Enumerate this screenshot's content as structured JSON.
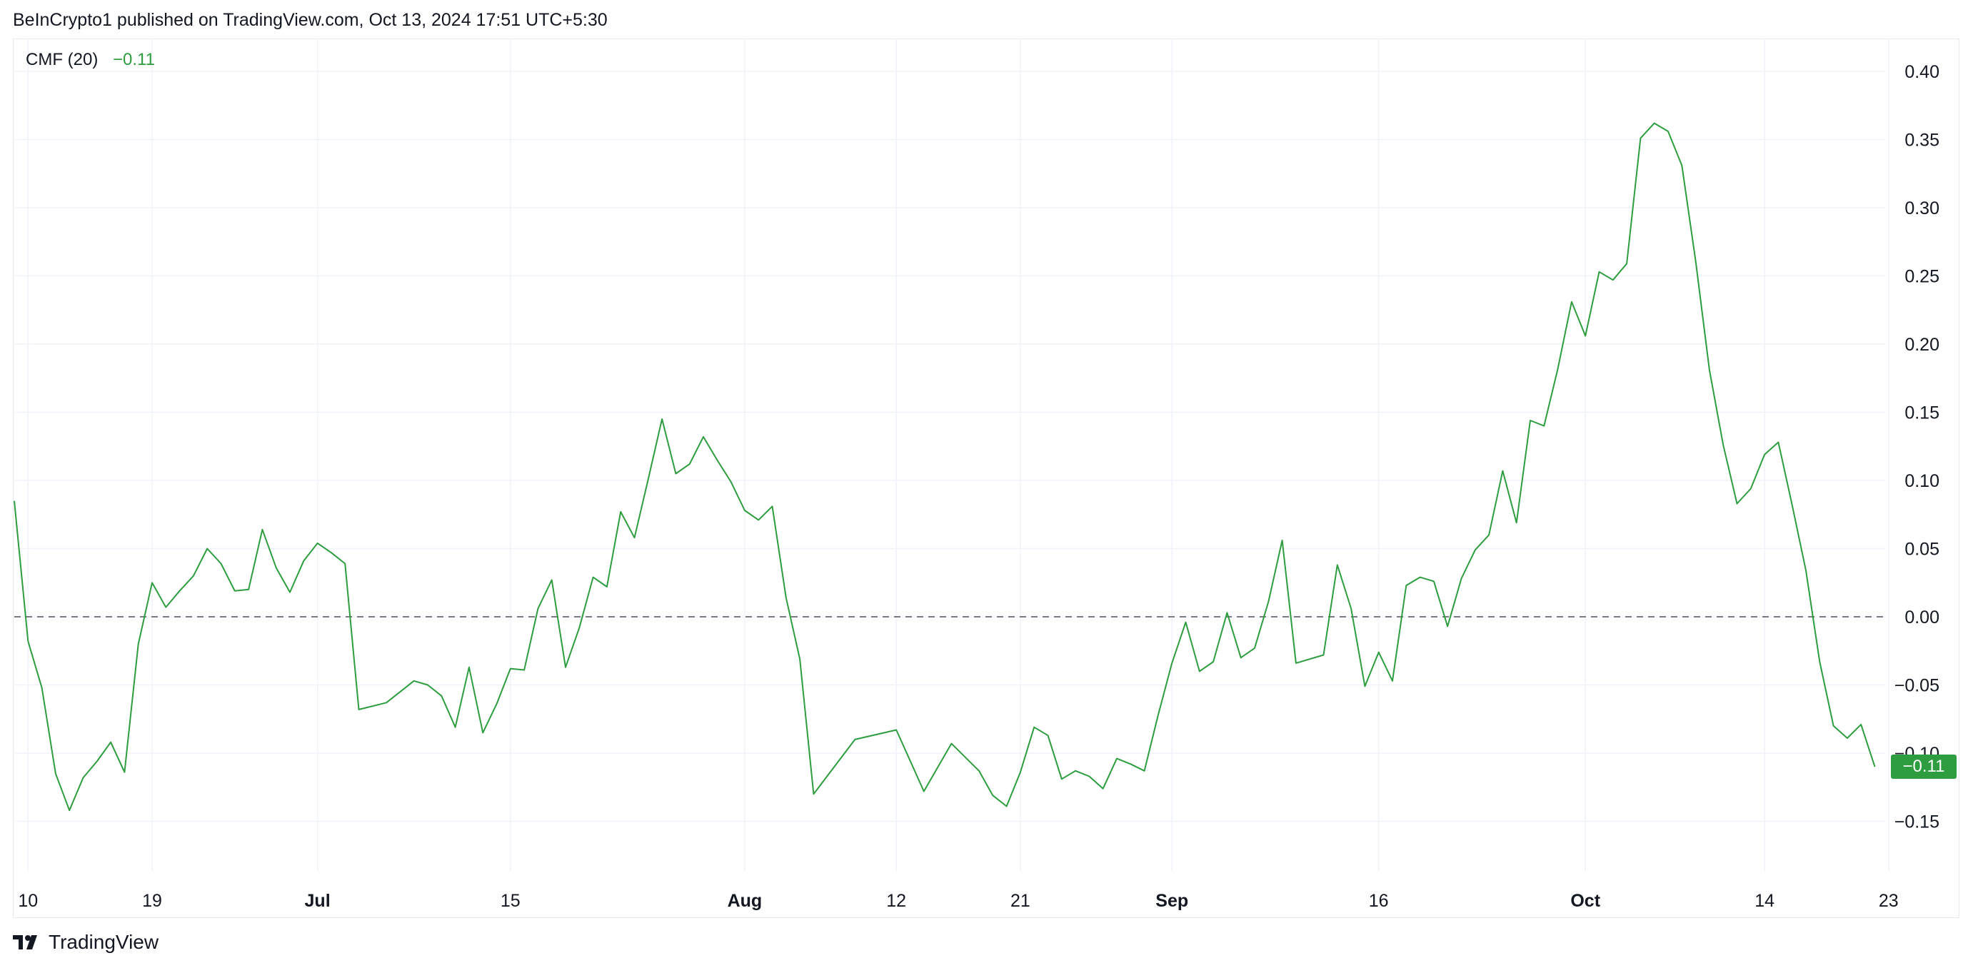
{
  "attribution": "BeInCrypto1 published on TradingView.com, Oct 13, 2024 17:51 UTC+5:30",
  "legend": {
    "name": "CMF (20)",
    "value": "−0.11"
  },
  "brand": {
    "name": "TradingView"
  },
  "last_value_label": "−0.11",
  "colors": {
    "line": "#2e9d3f",
    "grid": "#f0f3fa",
    "zero_line": "#787b86"
  },
  "chart_data": {
    "type": "line",
    "title": "CMF (20)",
    "xlabel": "",
    "ylabel": "",
    "ylim": [
      -0.19,
      0.42
    ],
    "grid": true,
    "zero_line": {
      "value": 0,
      "style": "dashed"
    },
    "y_ticks": [
      {
        "v": 0.4,
        "label": "0.40"
      },
      {
        "v": 0.35,
        "label": "0.35"
      },
      {
        "v": 0.3,
        "label": "0.30"
      },
      {
        "v": 0.25,
        "label": "0.25"
      },
      {
        "v": 0.2,
        "label": "0.20"
      },
      {
        "v": 0.15,
        "label": "0.15"
      },
      {
        "v": 0.1,
        "label": "0.10"
      },
      {
        "v": 0.05,
        "label": "0.05"
      },
      {
        "v": 0.0,
        "label": "0.00"
      },
      {
        "v": -0.05,
        "label": "−0.05"
      },
      {
        "v": -0.1,
        "label": "−0.10"
      },
      {
        "v": -0.15,
        "label": "−0.15"
      }
    ],
    "x_ticks": [
      {
        "date": "2024-06-10",
        "label": "10",
        "bold": false
      },
      {
        "date": "2024-06-19",
        "label": "19",
        "bold": false
      },
      {
        "date": "2024-07-01",
        "label": "Jul",
        "bold": true
      },
      {
        "date": "2024-07-15",
        "label": "15",
        "bold": false
      },
      {
        "date": "2024-08-01",
        "label": "Aug",
        "bold": true
      },
      {
        "date": "2024-08-12",
        "label": "12",
        "bold": false
      },
      {
        "date": "2024-08-21",
        "label": "21",
        "bold": false
      },
      {
        "date": "2024-09-01",
        "label": "Sep",
        "bold": true
      },
      {
        "date": "2024-09-16",
        "label": "16",
        "bold": false
      },
      {
        "date": "2024-10-01",
        "label": "Oct",
        "bold": true
      },
      {
        "date": "2024-10-14",
        "label": "14",
        "bold": false
      },
      {
        "date": "2024-10-23",
        "label": "23",
        "bold": false
      }
    ],
    "x_range": [
      "2024-06-09",
      "2024-11-01"
    ],
    "series": [
      {
        "name": "CMF (20)",
        "points": [
          [
            "2024-06-09",
            0.085
          ],
          [
            "2024-06-10",
            -0.018
          ],
          [
            "2024-06-11",
            -0.052
          ],
          [
            "2024-06-12",
            -0.115
          ],
          [
            "2024-06-13",
            -0.142
          ],
          [
            "2024-06-14",
            -0.118
          ],
          [
            "2024-06-15",
            -0.106
          ],
          [
            "2024-06-16",
            -0.092
          ],
          [
            "2024-06-17",
            -0.114
          ],
          [
            "2024-06-18",
            -0.02
          ],
          [
            "2024-06-19",
            0.025
          ],
          [
            "2024-06-20",
            0.007
          ],
          [
            "2024-06-21",
            0.019
          ],
          [
            "2024-06-22",
            0.03
          ],
          [
            "2024-06-23",
            0.05
          ],
          [
            "2024-06-24",
            0.039
          ],
          [
            "2024-06-25",
            0.019
          ],
          [
            "2024-06-26",
            0.02
          ],
          [
            "2024-06-27",
            0.064
          ],
          [
            "2024-06-28",
            0.036
          ],
          [
            "2024-06-29",
            0.018
          ],
          [
            "2024-06-30",
            0.041
          ],
          [
            "2024-07-01",
            0.054
          ],
          [
            "2024-07-02",
            0.047
          ],
          [
            "2024-07-03",
            0.039
          ],
          [
            "2024-07-04",
            -0.068
          ],
          [
            "2024-07-06",
            -0.063
          ],
          [
            "2024-07-08",
            -0.047
          ],
          [
            "2024-07-09",
            -0.05
          ],
          [
            "2024-07-10",
            -0.058
          ],
          [
            "2024-07-11",
            -0.081
          ],
          [
            "2024-07-12",
            -0.037
          ],
          [
            "2024-07-13",
            -0.085
          ],
          [
            "2024-07-14",
            -0.064
          ],
          [
            "2024-07-15",
            -0.038
          ],
          [
            "2024-07-16",
            -0.039
          ],
          [
            "2024-07-17",
            0.006
          ],
          [
            "2024-07-18",
            0.027
          ],
          [
            "2024-07-19",
            -0.037
          ],
          [
            "2024-07-20",
            -0.008
          ],
          [
            "2024-07-21",
            0.029
          ],
          [
            "2024-07-22",
            0.022
          ],
          [
            "2024-07-23",
            0.077
          ],
          [
            "2024-07-24",
            0.058
          ],
          [
            "2024-07-25",
            0.101
          ],
          [
            "2024-07-26",
            0.145
          ],
          [
            "2024-07-27",
            0.105
          ],
          [
            "2024-07-28",
            0.112
          ],
          [
            "2024-07-29",
            0.132
          ],
          [
            "2024-07-30",
            0.115
          ],
          [
            "2024-07-31",
            0.099
          ],
          [
            "2024-08-01",
            0.078
          ],
          [
            "2024-08-02",
            0.071
          ],
          [
            "2024-08-03",
            0.081
          ],
          [
            "2024-08-04",
            0.014
          ],
          [
            "2024-08-05",
            -0.031
          ],
          [
            "2024-08-06",
            -0.13
          ],
          [
            "2024-08-09",
            -0.09
          ],
          [
            "2024-08-12",
            -0.083
          ],
          [
            "2024-08-14",
            -0.128
          ],
          [
            "2024-08-16",
            -0.093
          ],
          [
            "2024-08-18",
            -0.113
          ],
          [
            "2024-08-19",
            -0.131
          ],
          [
            "2024-08-20",
            -0.139
          ],
          [
            "2024-08-21",
            -0.114
          ],
          [
            "2024-08-22",
            -0.081
          ],
          [
            "2024-08-23",
            -0.087
          ],
          [
            "2024-08-24",
            -0.119
          ],
          [
            "2024-08-25",
            -0.113
          ],
          [
            "2024-08-26",
            -0.117
          ],
          [
            "2024-08-27",
            -0.126
          ],
          [
            "2024-08-28",
            -0.104
          ],
          [
            "2024-08-29",
            -0.108
          ],
          [
            "2024-08-30",
            -0.113
          ],
          [
            "2024-08-31",
            -0.072
          ],
          [
            "2024-09-01",
            -0.034
          ],
          [
            "2024-09-02",
            -0.004
          ],
          [
            "2024-09-03",
            -0.04
          ],
          [
            "2024-09-04",
            -0.033
          ],
          [
            "2024-09-05",
            0.003
          ],
          [
            "2024-09-06",
            -0.03
          ],
          [
            "2024-09-07",
            -0.023
          ],
          [
            "2024-09-08",
            0.011
          ],
          [
            "2024-09-09",
            0.056
          ],
          [
            "2024-09-10",
            -0.034
          ],
          [
            "2024-09-12",
            -0.028
          ],
          [
            "2024-09-13",
            0.038
          ],
          [
            "2024-09-14",
            0.006
          ],
          [
            "2024-09-15",
            -0.051
          ],
          [
            "2024-09-16",
            -0.026
          ],
          [
            "2024-09-17",
            -0.047
          ],
          [
            "2024-09-18",
            0.023
          ],
          [
            "2024-09-19",
            0.029
          ],
          [
            "2024-09-20",
            0.026
          ],
          [
            "2024-09-21",
            -0.007
          ],
          [
            "2024-09-22",
            0.028
          ],
          [
            "2024-09-23",
            0.049
          ],
          [
            "2024-09-24",
            0.06
          ],
          [
            "2024-09-25",
            0.107
          ],
          [
            "2024-09-26",
            0.069
          ],
          [
            "2024-09-27",
            0.144
          ],
          [
            "2024-09-28",
            0.14
          ],
          [
            "2024-09-29",
            0.182
          ],
          [
            "2024-09-30",
            0.231
          ],
          [
            "2024-10-01",
            0.206
          ],
          [
            "2024-10-02",
            0.253
          ],
          [
            "2024-10-03",
            0.247
          ],
          [
            "2024-10-04",
            0.259
          ],
          [
            "2024-10-05",
            0.351
          ],
          [
            "2024-10-06",
            0.362
          ],
          [
            "2024-10-07",
            0.356
          ],
          [
            "2024-10-08",
            0.331
          ],
          [
            "2024-10-09",
            0.261
          ],
          [
            "2024-10-10",
            0.181
          ],
          [
            "2024-10-11",
            0.126
          ],
          [
            "2024-10-12",
            0.083
          ],
          [
            "2024-10-13",
            0.094
          ],
          [
            "2024-10-14",
            0.119
          ],
          [
            "2024-10-15",
            0.128
          ],
          [
            "2024-10-16",
            0.082
          ],
          [
            "2024-10-17",
            0.034
          ],
          [
            "2024-10-18",
            -0.033
          ],
          [
            "2024-10-19",
            -0.08
          ],
          [
            "2024-10-20",
            -0.089
          ],
          [
            "2024-10-21",
            -0.079
          ],
          [
            "2024-10-22",
            -0.11
          ]
        ]
      }
    ]
  }
}
